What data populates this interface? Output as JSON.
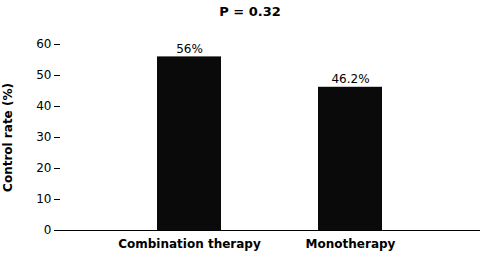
{
  "chart_data": {
    "type": "bar",
    "title": "P = 0.32",
    "ylabel": "Control rate (%)",
    "categories": [
      "Combination therapy",
      "Monotherapy"
    ],
    "values": [
      56.0,
      46.2
    ],
    "value_labels": [
      "56%",
      "46.2%"
    ],
    "data_labels": true,
    "color": "#0a0a0a",
    "ylim": [
      0,
      60
    ],
    "yticks": [
      0,
      10,
      20,
      30,
      40,
      50,
      60
    ],
    "grid": false
  }
}
